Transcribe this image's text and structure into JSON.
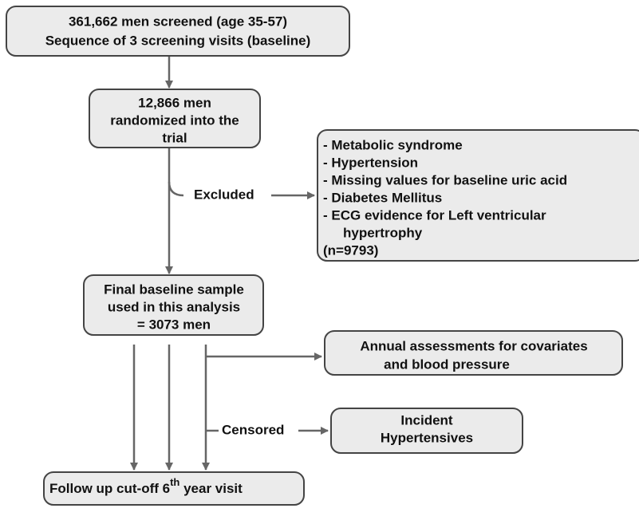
{
  "nodes": [
    {
      "lines": [
        "361,662 men screened (age 35-57)",
        "Sequence of 3 screening visits (baseline)"
      ]
    },
    {
      "lines": [
        "12,866 men",
        "randomized into the",
        "trial"
      ]
    },
    {
      "lines": [
        "- Metabolic syndrome",
        "- Hypertension",
        "- Missing values for baseline uric acid",
        "- Diabetes Mellitus",
        "- ECG evidence for Left ventricular",
        "hypertrophy",
        "(n=9793)"
      ]
    },
    {
      "lines": [
        "Final baseline sample",
        "used in this analysis",
        "= 3073 men"
      ]
    },
    {
      "lines": [
        "Annual assessments for covariates",
        "and blood pressure"
      ]
    },
    {
      "lines": [
        "Incident",
        "Hypertensives"
      ]
    },
    {
      "text": "Follow up  cut-off 6",
      "superscript": "th",
      "text_after": " year visit"
    }
  ],
  "edge_labels": [
    "Excluded",
    "Censored"
  ]
}
